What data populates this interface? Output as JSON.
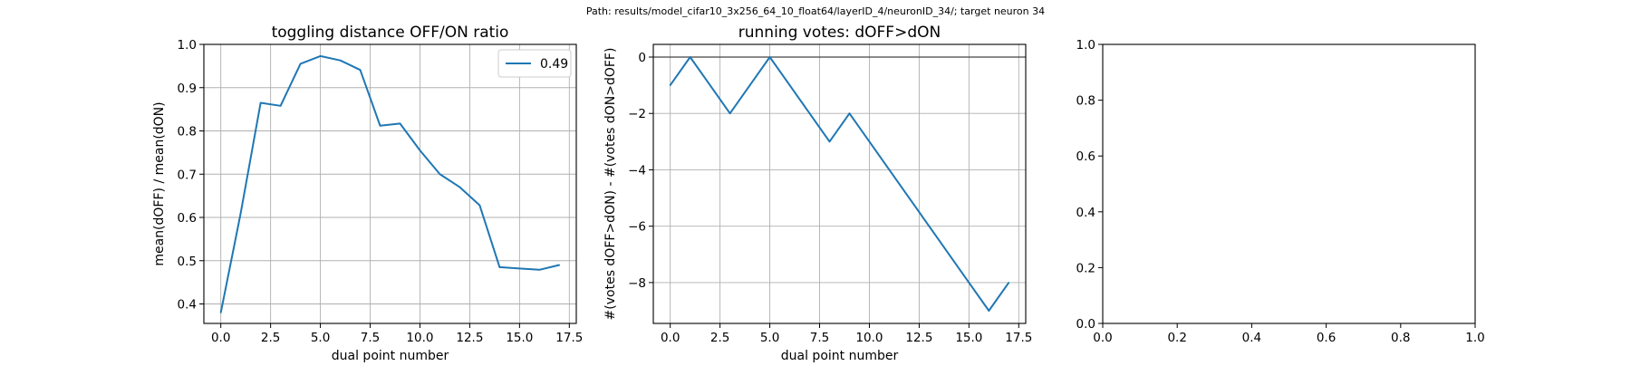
{
  "figure": {
    "suptitle": "Path: results/model_cifar10_3x256_64_10_float64/layerID_4/neuronID_34/; target neuron 34"
  },
  "colors": {
    "series": "#1f77b4",
    "zero_line": "#444444"
  },
  "chart_data": [
    {
      "type": "line",
      "title": "toggling distance OFF/ON ratio",
      "xlabel": "dual point number",
      "ylabel": "mean(dOFF) / mean(dON)",
      "xlim": [
        -0.85,
        17.85
      ],
      "ylim": [
        0.355,
        1.0
      ],
      "xticks": [
        0.0,
        2.5,
        5.0,
        7.5,
        10.0,
        12.5,
        15.0,
        17.5
      ],
      "xtick_labels": [
        "0.0",
        "2.5",
        "5.0",
        "7.5",
        "10.0",
        "12.5",
        "15.0",
        "17.5"
      ],
      "yticks": [
        0.4,
        0.5,
        0.6,
        0.7,
        0.8,
        0.9,
        1.0
      ],
      "ytick_labels": [
        "0.4",
        "0.5",
        "0.6",
        "0.7",
        "0.8",
        "0.9",
        "1.0"
      ],
      "grid": true,
      "legend": "top-right",
      "series": [
        {
          "name": "0.49",
          "x": [
            0,
            1,
            2,
            3,
            4,
            5,
            6,
            7,
            8,
            9,
            10,
            11,
            12,
            13,
            14,
            15,
            16,
            17
          ],
          "y": [
            0.38,
            0.61,
            0.865,
            0.858,
            0.955,
            0.973,
            0.963,
            0.941,
            0.812,
            0.817,
            0.755,
            0.7,
            0.67,
            0.628,
            0.485,
            0.482,
            0.479,
            0.49
          ]
        }
      ]
    },
    {
      "type": "line",
      "title": "running votes: dOFF>dON",
      "xlabel": "dual point number",
      "ylabel": "#(votes dOFF>dON) - #(votes dON>dOFF)",
      "xlim": [
        -0.85,
        17.85
      ],
      "ylim": [
        -9.45,
        0.45
      ],
      "xticks": [
        0.0,
        2.5,
        5.0,
        7.5,
        10.0,
        12.5,
        15.0,
        17.5
      ],
      "xtick_labels": [
        "0.0",
        "2.5",
        "5.0",
        "7.5",
        "10.0",
        "12.5",
        "15.0",
        "17.5"
      ],
      "yticks": [
        -8,
        -6,
        -4,
        -2,
        0
      ],
      "ytick_labels": [
        "−8",
        "−6",
        "−4",
        "−2",
        "0"
      ],
      "grid": true,
      "zero_line": 0,
      "series": [
        {
          "x": [
            0,
            1,
            2,
            3,
            4,
            5,
            6,
            7,
            8,
            9,
            10,
            11,
            12,
            13,
            14,
            15,
            16,
            17
          ],
          "y": [
            -1,
            0,
            -1,
            -2,
            -1,
            0,
            -1,
            -2,
            -3,
            -2,
            -3,
            -4,
            -5,
            -6,
            -7,
            -8,
            -9,
            -8
          ]
        }
      ]
    },
    {
      "type": "line",
      "title": "",
      "xlabel": "",
      "ylabel": "",
      "xlim": [
        0,
        1
      ],
      "ylim": [
        0,
        1
      ],
      "xticks": [
        0.0,
        0.2,
        0.4,
        0.6,
        0.8,
        1.0
      ],
      "xtick_labels": [
        "0.0",
        "0.2",
        "0.4",
        "0.6",
        "0.8",
        "1.0"
      ],
      "yticks": [
        0.0,
        0.2,
        0.4,
        0.6,
        0.8,
        1.0
      ],
      "ytick_labels": [
        "0.0",
        "0.2",
        "0.4",
        "0.6",
        "0.8",
        "1.0"
      ],
      "grid": false,
      "series": []
    }
  ]
}
